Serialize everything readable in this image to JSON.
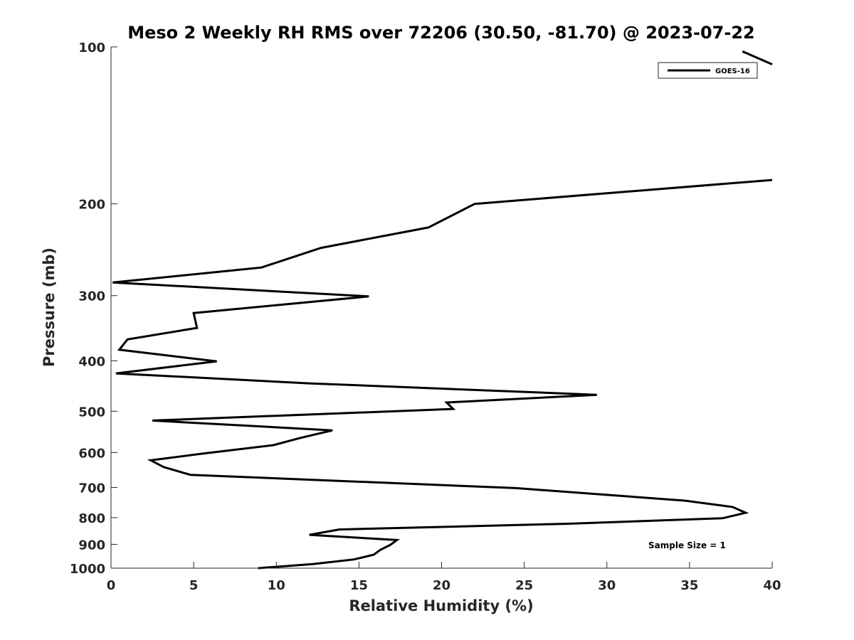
{
  "chart_data": {
    "type": "line",
    "title": "Meso 2 Weekly RH RMS over 72206 (30.50, -81.70) @ 2023-07-22",
    "xlabel": "Relative Humidity (%)",
    "ylabel": "Pressure (mb)",
    "xlim": [
      0,
      40
    ],
    "ylim": [
      100,
      1000
    ],
    "yscale": "log",
    "y_reversed": true,
    "grid": false,
    "x_ticks": [
      0,
      5,
      10,
      15,
      20,
      25,
      30,
      35,
      40
    ],
    "x_tick_labels": [
      "0",
      "5",
      "10",
      "15",
      "20",
      "25",
      "30",
      "35",
      "40"
    ],
    "y_ticks": [
      100,
      200,
      300,
      400,
      500,
      600,
      700,
      800,
      900,
      1000
    ],
    "y_tick_labels": [
      "100",
      "200",
      "300",
      "400",
      "500",
      "600",
      "700",
      "800",
      "900",
      "1000"
    ],
    "legend": {
      "position": "top-right",
      "entries": [
        "GOES-16"
      ]
    },
    "annotation": "Sample Size = 1",
    "series": [
      {
        "name": "GOES-16",
        "color": "#000000",
        "points": [
          [
            40.0,
            108
          ],
          [
            38.2,
            102
          ],
          [
            40.0,
            180
          ],
          [
            22.0,
            200
          ],
          [
            19.2,
            222
          ],
          [
            12.7,
            243
          ],
          [
            9.1,
            265
          ],
          [
            0.1,
            283
          ],
          [
            15.6,
            301
          ],
          [
            5.0,
            324
          ],
          [
            5.2,
            346
          ],
          [
            1.0,
            364
          ],
          [
            0.5,
            381
          ],
          [
            6.4,
            401
          ],
          [
            0.3,
            423
          ],
          [
            12.0,
            442
          ],
          [
            29.4,
            465
          ],
          [
            20.3,
            481
          ],
          [
            20.7,
            495
          ],
          [
            2.5,
            521
          ],
          [
            13.4,
            544
          ],
          [
            11.5,
            562
          ],
          [
            9.8,
            581
          ],
          [
            5.5,
            603
          ],
          [
            2.4,
            621
          ],
          [
            3.2,
            640
          ],
          [
            4.8,
            662
          ],
          [
            24.5,
            702
          ],
          [
            34.7,
            742
          ],
          [
            37.6,
            763
          ],
          [
            38.4,
            783
          ],
          [
            37.0,
            802
          ],
          [
            27.5,
            822
          ],
          [
            13.8,
            843
          ],
          [
            12.0,
            863
          ],
          [
            17.3,
            883
          ],
          [
            16.9,
            902
          ],
          [
            16.3,
            922
          ],
          [
            15.9,
            942
          ],
          [
            14.7,
            962
          ],
          [
            12.2,
            982
          ],
          [
            8.9,
            1000
          ]
        ]
      }
    ]
  }
}
